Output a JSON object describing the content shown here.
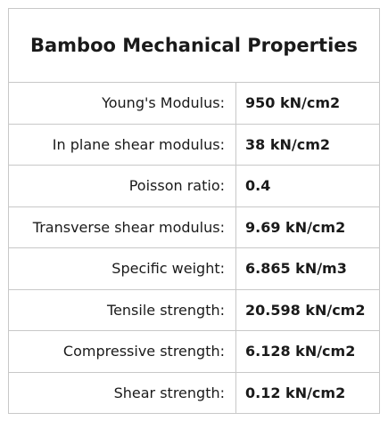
{
  "table": {
    "title": "Bamboo Mechanical Properties",
    "rows": [
      [
        "Young's Modulus:",
        "950 kN/cm2"
      ],
      [
        "In plane shear modulus:",
        "38 kN/cm2"
      ],
      [
        "Poisson ratio:",
        "0.4"
      ],
      [
        "Transverse shear modulus:",
        "9.69 kN/cm2"
      ],
      [
        "Specific weight:",
        "6.865 kN/m3"
      ],
      [
        "Tensile strength:",
        "20.598 kN/cm2"
      ],
      [
        "Compressive strength:",
        "6.128 kN/cm2"
      ],
      [
        "Shear strength:",
        "0.12 kN/cm2"
      ]
    ]
  }
}
